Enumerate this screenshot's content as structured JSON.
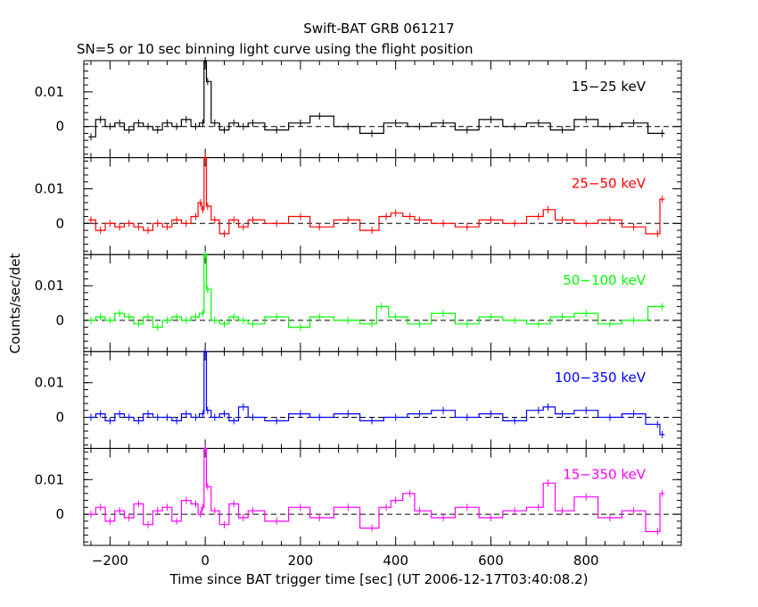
{
  "chart_data": {
    "type": "line",
    "title": "Swift-BAT GRB 061217",
    "subtitle": "SN=5 or 10 sec binning light curve using the flight position",
    "xlabel": "Time since BAT trigger time [sec] (UT 2006-12-17T03:40:08.2)",
    "ylabel": "Counts/sec/det",
    "xlim": [
      -255,
      1000
    ],
    "x_ticks": [
      -200,
      0,
      200,
      400,
      600,
      800
    ],
    "x_tick_labels": [
      "−200",
      "0",
      "200",
      "400",
      "600",
      "800"
    ],
    "ylim": [
      -0.009,
      0.019
    ],
    "y_ticks": [
      0,
      0.01
    ],
    "y_tick_labels": [
      "0",
      "0.01"
    ],
    "bin_width_sec": 10,
    "grid": false,
    "panels": [
      {
        "name": "15−25 keV",
        "color": "#000000",
        "x": [
          -240,
          -220,
          -200,
          -180,
          -160,
          -140,
          -120,
          -100,
          -80,
          -60,
          -40,
          -20,
          -5,
          0,
          5,
          20,
          40,
          60,
          80,
          100,
          150,
          200,
          240,
          300,
          350,
          400,
          450,
          500,
          550,
          600,
          650,
          700,
          750,
          800,
          850,
          900,
          960
        ],
        "y": [
          -0.003,
          0.002,
          0.0,
          0.001,
          -0.001,
          0.001,
          0.0,
          -0.001,
          0.001,
          0.0,
          0.002,
          0.0,
          0.001,
          0.019,
          0.013,
          0.001,
          -0.001,
          0.001,
          0.0,
          0.001,
          -0.001,
          0.001,
          0.003,
          0.0,
          -0.002,
          0.001,
          0.0,
          0.001,
          -0.001,
          0.002,
          0.0,
          0.001,
          -0.001,
          0.002,
          0.0,
          0.001,
          -0.002
        ]
      },
      {
        "name": "25−50 keV",
        "color": "#ff0000",
        "x": [
          -240,
          -220,
          -200,
          -180,
          -160,
          -140,
          -120,
          -100,
          -80,
          -60,
          -40,
          -20,
          -10,
          -5,
          0,
          5,
          20,
          40,
          60,
          80,
          100,
          150,
          200,
          240,
          300,
          350,
          380,
          400,
          430,
          450,
          500,
          550,
          600,
          650,
          700,
          720,
          750,
          800,
          850,
          900,
          950,
          960
        ],
        "y": [
          0.001,
          -0.002,
          0.0,
          -0.001,
          0.0,
          -0.001,
          -0.002,
          0.0,
          -0.001,
          0.001,
          0.0,
          0.002,
          0.006,
          0.004,
          0.019,
          0.005,
          0.001,
          -0.003,
          0.001,
          -0.001,
          0.001,
          0.0,
          0.002,
          -0.001,
          0.001,
          -0.002,
          0.002,
          0.003,
          0.002,
          0.001,
          0.0,
          -0.001,
          0.001,
          0.0,
          0.002,
          0.004,
          0.001,
          0.0,
          0.001,
          -0.001,
          -0.003,
          0.007
        ]
      },
      {
        "name": "50−100 keV",
        "color": "#00ff00",
        "x": [
          -240,
          -220,
          -200,
          -180,
          -160,
          -140,
          -120,
          -100,
          -80,
          -60,
          -40,
          -20,
          -5,
          0,
          5,
          20,
          40,
          60,
          80,
          100,
          150,
          200,
          240,
          300,
          350,
          370,
          400,
          450,
          500,
          550,
          600,
          650,
          700,
          750,
          800,
          850,
          900,
          960
        ],
        "y": [
          0.0,
          0.001,
          0.0,
          0.002,
          0.001,
          -0.001,
          0.001,
          -0.002,
          0.0,
          0.001,
          0.0,
          0.001,
          0.002,
          0.019,
          0.009,
          0.0,
          -0.001,
          0.001,
          0.0,
          -0.001,
          0.001,
          -0.002,
          0.001,
          0.0,
          -0.001,
          0.004,
          0.001,
          -0.001,
          0.002,
          -0.001,
          0.001,
          0.0,
          -0.001,
          0.001,
          0.002,
          -0.001,
          0.0,
          0.004
        ]
      },
      {
        "name": "100−350 keV",
        "color": "#0000ff",
        "x": [
          -240,
          -220,
          -200,
          -180,
          -160,
          -140,
          -120,
          -100,
          -80,
          -60,
          -40,
          -20,
          -5,
          0,
          5,
          20,
          40,
          60,
          80,
          100,
          150,
          200,
          240,
          300,
          350,
          400,
          450,
          500,
          550,
          600,
          650,
          700,
          720,
          750,
          800,
          850,
          900,
          950,
          960
        ],
        "y": [
          0.0,
          0.001,
          -0.001,
          0.001,
          0.0,
          -0.001,
          0.001,
          0.0,
          0.0,
          -0.001,
          0.001,
          0.0,
          0.001,
          0.019,
          0.002,
          0.0,
          0.001,
          -0.001,
          0.003,
          0.0,
          -0.001,
          0.001,
          0.0,
          0.001,
          -0.001,
          0.0,
          0.001,
          0.002,
          0.0,
          0.001,
          -0.001,
          0.002,
          0.003,
          0.001,
          0.002,
          0.0,
          0.001,
          -0.002,
          -0.005
        ]
      },
      {
        "name": "15−350 keV",
        "color": "#ff00ff",
        "x": [
          -240,
          -220,
          -200,
          -180,
          -160,
          -140,
          -120,
          -100,
          -80,
          -60,
          -40,
          -20,
          -10,
          -5,
          0,
          5,
          20,
          40,
          60,
          80,
          100,
          150,
          200,
          240,
          300,
          350,
          380,
          400,
          430,
          450,
          500,
          550,
          600,
          650,
          700,
          720,
          750,
          800,
          850,
          900,
          950,
          960
        ],
        "y": [
          0.0,
          0.002,
          -0.002,
          0.001,
          -0.001,
          0.003,
          -0.003,
          0.001,
          0.002,
          -0.002,
          0.004,
          0.003,
          0.0,
          0.002,
          0.019,
          0.008,
          0.001,
          -0.003,
          0.003,
          -0.001,
          0.001,
          -0.002,
          0.002,
          -0.001,
          0.002,
          -0.004,
          0.002,
          0.004,
          0.006,
          0.001,
          -0.001,
          0.002,
          -0.001,
          0.001,
          0.002,
          0.009,
          0.001,
          0.005,
          -0.001,
          0.001,
          -0.005,
          0.006
        ]
      }
    ]
  }
}
